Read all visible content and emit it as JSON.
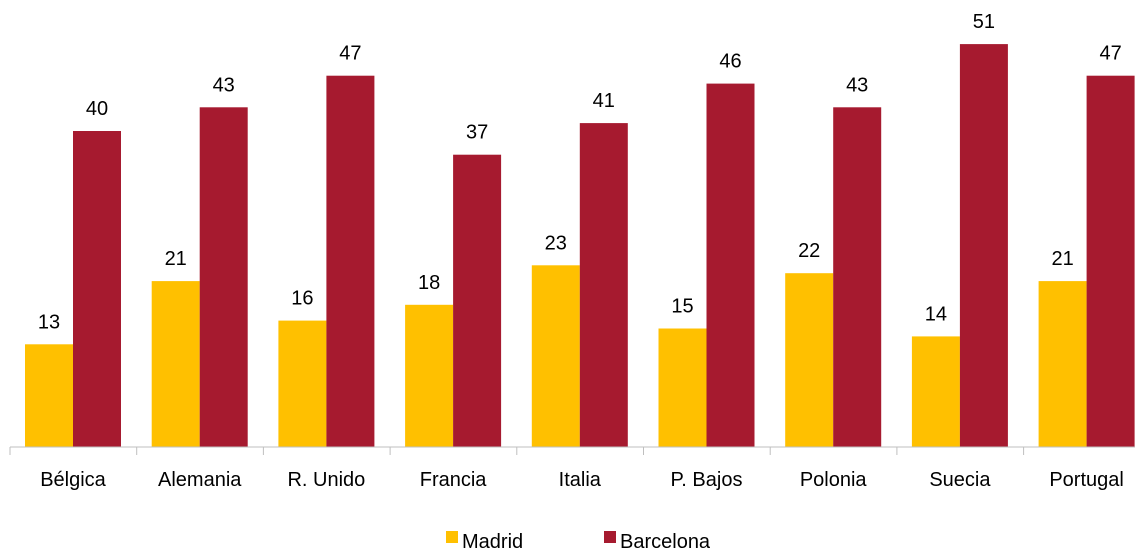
{
  "chart_data": {
    "type": "bar",
    "categories": [
      "Bélgica",
      "Alemania",
      "R. Unido",
      "Francia",
      "Italia",
      "P. Bajos",
      "Polonia",
      "Suecia",
      "Portugal"
    ],
    "series": [
      {
        "name": "Madrid",
        "color": "#FFC000",
        "values": [
          13,
          21,
          16,
          18,
          23,
          15,
          22,
          14,
          21
        ]
      },
      {
        "name": "Barcelona",
        "color": "#A61A2F",
        "values": [
          40,
          43,
          47,
          37,
          41,
          46,
          43,
          51,
          47
        ]
      }
    ],
    "title": "",
    "xlabel": "",
    "ylabel": "",
    "ylim": [
      0,
      52
    ],
    "grid": false,
    "data_labels": true,
    "legend": "bottom-center"
  }
}
